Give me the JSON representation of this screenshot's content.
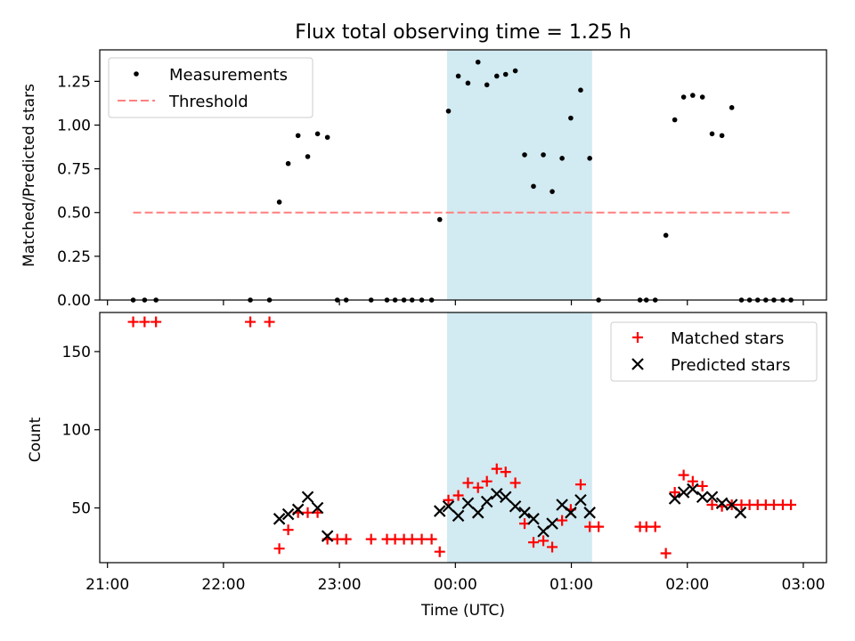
{
  "chart_data": {
    "title": "Flux total observing time = 1.25 h",
    "xlabel": "Time (UTC)",
    "x_unit": "minutes after 21:00 UTC",
    "x_ticks": [
      {
        "t": 0,
        "label": "21:00"
      },
      {
        "t": 60,
        "label": "22:00"
      },
      {
        "t": 120,
        "label": "23:00"
      },
      {
        "t": 180,
        "label": "00:00"
      },
      {
        "t": 240,
        "label": "01:00"
      },
      {
        "t": 300,
        "label": "02:00"
      },
      {
        "t": 360,
        "label": "03:00"
      }
    ],
    "xlim": [
      -4,
      372
    ],
    "shaded_interval": {
      "start": 175.7,
      "end": 250.7,
      "color": "#add8e6"
    },
    "panels": [
      {
        "type": "scatter",
        "ylabel": "Matched/Predicted stars",
        "ylim": [
          0,
          1.43
        ],
        "yticks": [
          {
            "v": 0,
            "label": "0.00"
          },
          {
            "v": 0.25,
            "label": "0.25"
          },
          {
            "v": 0.5,
            "label": "0.50"
          },
          {
            "v": 0.75,
            "label": "0.75"
          },
          {
            "v": 1.0,
            "label": "1.00"
          },
          {
            "v": 1.25,
            "label": "1.25"
          }
        ],
        "legend": {
          "placement": "upper-left",
          "entries": [
            "Measurements",
            "Threshold"
          ]
        },
        "series": [
          {
            "name": "Measurements",
            "marker": "dot",
            "color": "#000000",
            "points": [
              [
                13.3,
                0
              ],
              [
                19.2,
                0
              ],
              [
                25.1,
                0
              ],
              [
                73.9,
                0
              ],
              [
                83.8,
                0
              ],
              [
                88.9,
                0.56
              ],
              [
                93.5,
                0.78
              ],
              [
                98.6,
                0.94
              ],
              [
                103.6,
                0.82
              ],
              [
                108.7,
                0.95
              ],
              [
                113.8,
                0.93
              ],
              [
                118.9,
                0
              ],
              [
                123.5,
                0
              ],
              [
                136.4,
                0
              ],
              [
                144.6,
                0
              ],
              [
                148.8,
                0
              ],
              [
                153.4,
                0
              ],
              [
                157.6,
                0
              ],
              [
                162.6,
                0
              ],
              [
                167.7,
                0
              ],
              [
                171.9,
                0.46
              ],
              [
                176.4,
                1.08
              ],
              [
                181.5,
                1.28
              ],
              [
                186.5,
                1.24
              ],
              [
                191.7,
                1.36
              ],
              [
                196.3,
                1.23
              ],
              [
                201.4,
                1.28
              ],
              [
                206.0,
                1.29
              ],
              [
                211.0,
                1.31
              ],
              [
                215.8,
                0.83
              ],
              [
                220.4,
                0.65
              ],
              [
                225.5,
                0.83
              ],
              [
                230.1,
                0.62
              ],
              [
                235.2,
                0.81
              ],
              [
                239.7,
                1.04
              ],
              [
                244.8,
                1.2
              ],
              [
                249.5,
                0.81
              ],
              [
                254.1,
                0
              ],
              [
                275.5,
                0
              ],
              [
                278.8,
                0
              ],
              [
                283.4,
                0
              ],
              [
                288.9,
                0.37
              ],
              [
                293.5,
                1.03
              ],
              [
                298.1,
                1.16
              ],
              [
                302.8,
                1.17
              ],
              [
                307.8,
                1.16
              ],
              [
                312.8,
                0.95
              ],
              [
                317.9,
                0.94
              ],
              [
                323.0,
                1.1
              ],
              [
                328.0,
                0
              ],
              [
                332.2,
                0
              ],
              [
                336.4,
                0
              ],
              [
                340.6,
                0
              ],
              [
                344.8,
                0
              ],
              [
                349.4,
                0
              ],
              [
                353.6,
                0
              ]
            ]
          },
          {
            "name": "Threshold",
            "style": "dashed",
            "color": "#ff7f7f",
            "points": [
              [
                13.3,
                0.5
              ],
              [
                353.6,
                0.5
              ]
            ]
          }
        ]
      },
      {
        "type": "scatter",
        "ylabel": "Count",
        "ylim": [
          15,
          175
        ],
        "yticks": [
          {
            "v": 50,
            "label": "50"
          },
          {
            "v": 100,
            "label": "100"
          },
          {
            "v": 150,
            "label": "150"
          }
        ],
        "legend": {
          "placement": "upper-right",
          "entries": [
            "Matched stars",
            "Predicted stars"
          ]
        },
        "series": [
          {
            "name": "Matched stars",
            "marker": "plus",
            "color": "#ff0000",
            "points": [
              [
                13.3,
                169
              ],
              [
                19.2,
                169
              ],
              [
                25.1,
                169
              ],
              [
                73.9,
                169
              ],
              [
                83.8,
                169
              ],
              [
                88.9,
                24
              ],
              [
                93.5,
                36
              ],
              [
                98.6,
                47
              ],
              [
                103.6,
                47
              ],
              [
                108.7,
                47
              ],
              [
                113.8,
                30
              ],
              [
                118.9,
                30
              ],
              [
                123.5,
                30
              ],
              [
                136.4,
                30
              ],
              [
                144.6,
                30
              ],
              [
                148.8,
                30
              ],
              [
                153.4,
                30
              ],
              [
                157.6,
                30
              ],
              [
                162.6,
                30
              ],
              [
                167.7,
                30
              ],
              [
                171.9,
                22
              ],
              [
                176.4,
                55
              ],
              [
                181.5,
                58
              ],
              [
                186.5,
                66
              ],
              [
                191.7,
                63
              ],
              [
                196.3,
                67
              ],
              [
                201.4,
                75
              ],
              [
                206.0,
                73
              ],
              [
                211.0,
                66
              ],
              [
                215.8,
                40
              ],
              [
                220.4,
                28
              ],
              [
                225.5,
                29
              ],
              [
                230.1,
                25
              ],
              [
                235.2,
                42
              ],
              [
                239.7,
                49
              ],
              [
                244.8,
                65
              ],
              [
                249.5,
                38
              ],
              [
                254.1,
                38
              ],
              [
                275.5,
                38
              ],
              [
                278.8,
                38
              ],
              [
                283.4,
                38
              ],
              [
                288.9,
                21
              ],
              [
                293.5,
                60
              ],
              [
                298.1,
                71
              ],
              [
                302.8,
                67
              ],
              [
                307.8,
                64
              ],
              [
                312.8,
                52
              ],
              [
                317.9,
                51
              ],
              [
                323.0,
                52
              ],
              [
                328.0,
                52
              ],
              [
                332.2,
                52
              ],
              [
                336.4,
                52
              ],
              [
                340.6,
                52
              ],
              [
                344.8,
                52
              ],
              [
                349.4,
                52
              ],
              [
                353.6,
                52
              ]
            ]
          },
          {
            "name": "Predicted stars",
            "marker": "x",
            "color": "#000000",
            "points": [
              [
                88.9,
                43
              ],
              [
                93.5,
                46
              ],
              [
                98.6,
                49
              ],
              [
                103.6,
                57
              ],
              [
                108.7,
                50
              ],
              [
                113.8,
                32
              ],
              [
                171.9,
                48
              ],
              [
                176.4,
                51
              ],
              [
                181.5,
                45
              ],
              [
                186.5,
                53
              ],
              [
                191.7,
                47
              ],
              [
                196.3,
                54
              ],
              [
                201.4,
                59
              ],
              [
                206.0,
                57
              ],
              [
                211.0,
                51
              ],
              [
                215.8,
                47
              ],
              [
                220.4,
                43
              ],
              [
                225.5,
                35
              ],
              [
                230.1,
                40
              ],
              [
                235.2,
                52
              ],
              [
                239.7,
                47
              ],
              [
                244.8,
                55
              ],
              [
                249.5,
                47
              ],
              [
                293.5,
                56
              ],
              [
                298.1,
                60
              ],
              [
                302.8,
                62
              ],
              [
                307.8,
                57
              ],
              [
                312.8,
                57
              ],
              [
                317.9,
                53
              ],
              [
                323.0,
                52
              ],
              [
                327.5,
                47
              ]
            ]
          }
        ]
      }
    ]
  }
}
